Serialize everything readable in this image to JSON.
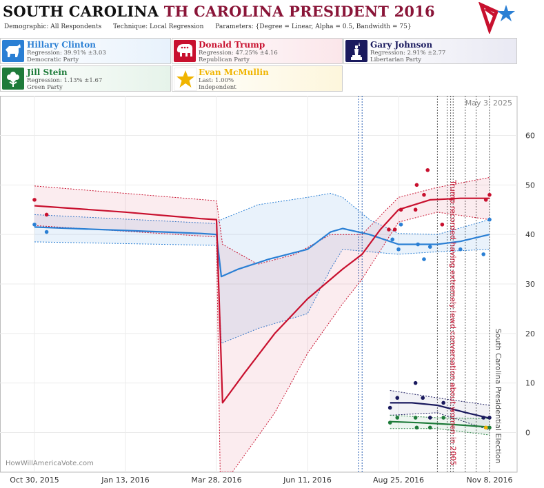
{
  "header": {
    "title_state": "SOUTH CAROLINA",
    "title_rest": "TH CAROLINA PRESIDENT 2016",
    "demographic": "Demographic: All Respondents",
    "technique": "Technique: Local Regression",
    "parameters": "Parameters: {Degree = Linear, Alpha = 0.5, Bandwidth = 75}"
  },
  "candidates": [
    {
      "name": "Hillary Clinton",
      "line1": "Regression: 39.91% ±3.03",
      "line2": "Democratic Party",
      "color": "#2a7fd4",
      "icon": "donkey-icon"
    },
    {
      "name": "Donald Trump",
      "line1": "Regression: 47.25% ±4.16",
      "line2": "Republican Party",
      "color": "#c8102e",
      "icon": "elephant-icon"
    },
    {
      "name": "Gary Johnson",
      "line1": "Regression: 2.91% ±2.77",
      "line2": "Libertarian Party",
      "color": "#1a1a5e",
      "icon": "statue-of-liberty-icon"
    },
    {
      "name": "Jill Stein",
      "line1": "Regression: 1.13% ±1.67",
      "line2": "Green Party",
      "color": "#1e7b3a",
      "icon": "flower-icon"
    },
    {
      "name": "Evan McMullin",
      "line1": "Last: 1.00%",
      "line2": "Independent",
      "color": "#f0b400",
      "icon": "star-icon"
    }
  ],
  "chart_data": {
    "type": "line",
    "date_label": "May 3, 2025",
    "watermark": "HowWillAmericaVote.com",
    "x_ticks": [
      "Oct 30, 2015",
      "Jan 13, 2016",
      "Mar 28, 2016",
      "Jun 11, 2016",
      "Aug 25, 2016",
      "Nov 8, 2016"
    ],
    "x_range": [
      "2015-10-30",
      "2016-11-08"
    ],
    "y_ticks": [
      0,
      10,
      20,
      30,
      40,
      50,
      60
    ],
    "ylim": [
      -8,
      68
    ],
    "annotations": [
      {
        "date": "2016-10-07",
        "text": "Trump recorded having extremely lewd conversation about women in 2005",
        "color": "#c8102e"
      },
      {
        "date": "2016-11-08",
        "text": "South Carolina Presidential Election",
        "color": "#555555"
      }
    ],
    "event_lines": {
      "blue": [
        "2016-07-23",
        "2016-07-26"
      ],
      "black": [
        "2016-09-26",
        "2016-10-04",
        "2016-10-07",
        "2016-10-09",
        "2016-10-19",
        "2016-10-28",
        "2016-11-08"
      ]
    },
    "series": [
      {
        "name": "Hillary Clinton",
        "color": "#2a7fd4",
        "line": [
          [
            "2015-10-30",
            41.5
          ],
          [
            "2016-01-13",
            40.8
          ],
          [
            "2016-03-15",
            40.2
          ],
          [
            "2016-03-28",
            40
          ],
          [
            "2016-04-01",
            31.5
          ],
          [
            "2016-04-15",
            33
          ],
          [
            "2016-05-10",
            35
          ],
          [
            "2016-06-11",
            37
          ],
          [
            "2016-06-30",
            40.5
          ],
          [
            "2016-07-10",
            41.2
          ],
          [
            "2016-08-01",
            40
          ],
          [
            "2016-08-25",
            38
          ],
          [
            "2016-09-26",
            38
          ],
          [
            "2016-10-15",
            38.6
          ],
          [
            "2016-11-08",
            40
          ]
        ],
        "upper": [
          [
            "2015-10-30",
            44
          ],
          [
            "2016-03-28",
            42.2
          ],
          [
            "2016-04-01",
            43
          ],
          [
            "2016-05-01",
            46
          ],
          [
            "2016-06-11",
            47.5
          ],
          [
            "2016-06-30",
            48.3
          ],
          [
            "2016-07-10",
            47.5
          ],
          [
            "2016-08-01",
            43
          ],
          [
            "2016-08-25",
            40.2
          ],
          [
            "2016-09-26",
            40
          ],
          [
            "2016-11-08",
            43
          ]
        ],
        "lower": [
          [
            "2015-10-30",
            38.5
          ],
          [
            "2016-03-28",
            37.8
          ],
          [
            "2016-04-01",
            18
          ],
          [
            "2016-05-01",
            21
          ],
          [
            "2016-06-11",
            24
          ],
          [
            "2016-06-30",
            33
          ],
          [
            "2016-07-10",
            37
          ],
          [
            "2016-08-01",
            36.5
          ],
          [
            "2016-08-25",
            36
          ],
          [
            "2016-09-26",
            36.5
          ],
          [
            "2016-11-08",
            37
          ]
        ],
        "points": [
          [
            "2015-10-30",
            42
          ],
          [
            "2015-11-09",
            40.5
          ],
          [
            "2016-08-20",
            39
          ],
          [
            "2016-08-25",
            37
          ],
          [
            "2016-08-27",
            42
          ],
          [
            "2016-09-10",
            38
          ],
          [
            "2016-09-15",
            35
          ],
          [
            "2016-09-20",
            37.5
          ],
          [
            "2016-10-15",
            37
          ],
          [
            "2016-11-03",
            36
          ],
          [
            "2016-11-08",
            43
          ]
        ]
      },
      {
        "name": "Donald Trump",
        "color": "#c8102e",
        "line": [
          [
            "2015-10-30",
            45.8
          ],
          [
            "2016-01-13",
            44.5
          ],
          [
            "2016-03-15",
            43.2
          ],
          [
            "2016-03-28",
            43
          ],
          [
            "2016-04-02",
            6
          ],
          [
            "2016-04-20",
            12
          ],
          [
            "2016-05-15",
            20
          ],
          [
            "2016-06-11",
            27
          ],
          [
            "2016-07-10",
            33
          ],
          [
            "2016-07-26",
            36
          ],
          [
            "2016-08-10",
            41
          ],
          [
            "2016-08-25",
            45
          ],
          [
            "2016-09-20",
            47
          ],
          [
            "2016-10-15",
            47.3
          ],
          [
            "2016-11-08",
            47.3
          ]
        ],
        "upper": [
          [
            "2015-10-30",
            49.8
          ],
          [
            "2016-03-28",
            46.8
          ],
          [
            "2016-04-02",
            38
          ],
          [
            "2016-05-01",
            34
          ],
          [
            "2016-06-01",
            36
          ],
          [
            "2016-06-30",
            40
          ],
          [
            "2016-07-26",
            40
          ],
          [
            "2016-08-25",
            47.5
          ],
          [
            "2016-09-26",
            49.5
          ],
          [
            "2016-11-08",
            51.5
          ]
        ],
        "lower": [
          [
            "2015-10-30",
            41.8
          ],
          [
            "2016-03-28",
            39.5
          ],
          [
            "2016-03-31",
            -8
          ],
          [
            "2016-04-10",
            -8
          ],
          [
            "2016-05-15",
            4
          ],
          [
            "2016-06-11",
            16
          ],
          [
            "2016-07-10",
            26
          ],
          [
            "2016-07-26",
            31
          ],
          [
            "2016-08-25",
            42.5
          ],
          [
            "2016-09-26",
            44.5
          ],
          [
            "2016-11-08",
            43
          ]
        ],
        "points": [
          [
            "2015-10-30",
            47
          ],
          [
            "2015-11-09",
            44
          ],
          [
            "2016-08-17",
            41
          ],
          [
            "2016-08-22",
            41
          ],
          [
            "2016-08-27",
            45
          ],
          [
            "2016-09-08",
            45
          ],
          [
            "2016-09-09",
            50
          ],
          [
            "2016-09-15",
            48
          ],
          [
            "2016-09-18",
            53
          ],
          [
            "2016-09-30",
            42
          ],
          [
            "2016-11-05",
            47
          ],
          [
            "2016-11-08",
            48
          ]
        ]
      },
      {
        "name": "Gary Johnson",
        "color": "#1a1a5e",
        "line": [
          [
            "2016-08-18",
            6
          ],
          [
            "2016-09-05",
            6
          ],
          [
            "2016-09-26",
            5.5
          ],
          [
            "2016-10-20",
            4
          ],
          [
            "2016-11-08",
            2.9
          ]
        ],
        "upper": [
          [
            "2016-08-18",
            8.5
          ],
          [
            "2016-09-26",
            7
          ],
          [
            "2016-11-08",
            5.5
          ]
        ],
        "lower": [
          [
            "2016-08-18",
            3.5
          ],
          [
            "2016-09-26",
            4
          ],
          [
            "2016-11-08",
            0.5
          ]
        ],
        "points": [
          [
            "2016-08-18",
            5
          ],
          [
            "2016-08-24",
            7
          ],
          [
            "2016-09-08",
            10
          ],
          [
            "2016-09-14",
            7
          ],
          [
            "2016-09-20",
            3
          ],
          [
            "2016-10-01",
            6
          ],
          [
            "2016-11-03",
            3
          ],
          [
            "2016-11-08",
            3
          ]
        ]
      },
      {
        "name": "Jill Stein",
        "color": "#1e7b3a",
        "line": [
          [
            "2016-08-18",
            2.2
          ],
          [
            "2016-09-10",
            2
          ],
          [
            "2016-10-10",
            1.6
          ],
          [
            "2016-11-08",
            1.1
          ]
        ],
        "upper": [
          [
            "2016-08-18",
            3.5
          ],
          [
            "2016-09-26",
            3
          ],
          [
            "2016-11-08",
            2.8
          ]
        ],
        "lower": [
          [
            "2016-08-18",
            0.8
          ],
          [
            "2016-09-26",
            0.8
          ],
          [
            "2016-11-08",
            -0.5
          ]
        ],
        "points": [
          [
            "2016-08-18",
            2
          ],
          [
            "2016-08-24",
            3
          ],
          [
            "2016-09-08",
            3
          ],
          [
            "2016-09-09",
            1
          ],
          [
            "2016-09-20",
            1
          ],
          [
            "2016-10-01",
            3
          ],
          [
            "2016-11-08",
            1
          ]
        ]
      },
      {
        "name": "Evan McMullin",
        "color": "#f0b400",
        "line": [],
        "upper": [],
        "lower": [],
        "points": [
          [
            "2016-11-05",
            1
          ]
        ]
      }
    ]
  }
}
